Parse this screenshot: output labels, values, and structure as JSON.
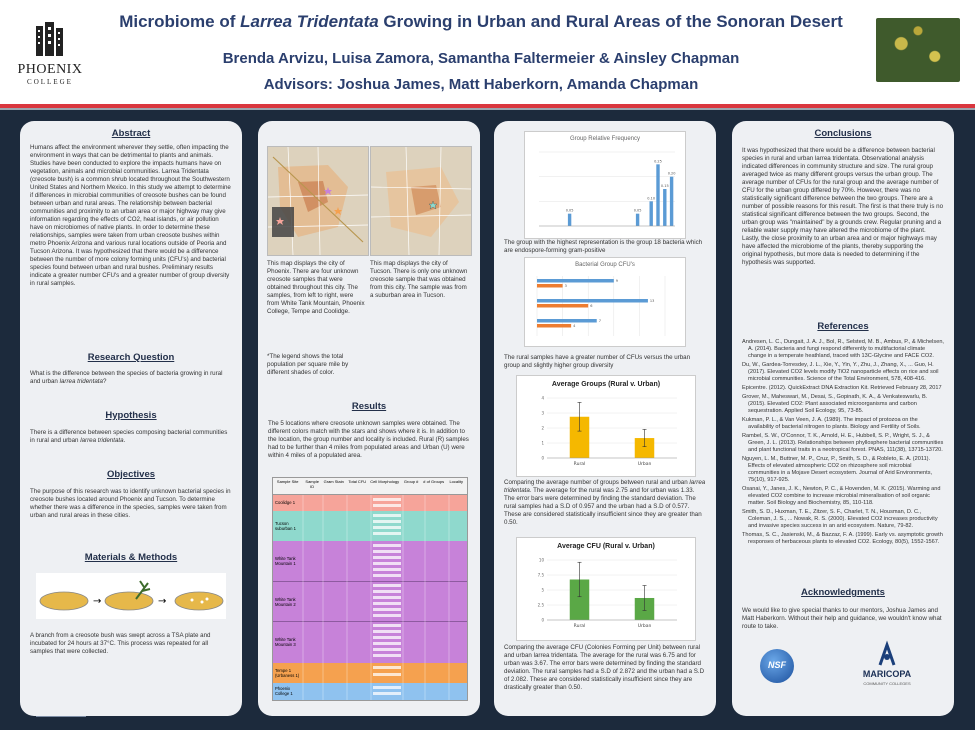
{
  "header": {
    "logo_text": "PHOENIX",
    "logo_sub": "COLLEGE",
    "title_pre": "Microbiome of ",
    "title_italic": "Larrea Tridentata",
    "title_post": " Growing in Urban and Rural Areas of the Sonoran Desert",
    "authors": "Brenda Arvizu, Luisa Zamora, Samantha Faltermeier & Ainsley Chapman",
    "advisors": "Advisors: Joshua James, Matt Haberkorn, Amanda Chapman"
  },
  "abstract": {
    "heading": "Abstract",
    "text": "Humans affect the environment wherever they settle, often impacting the environment in ways that can be detrimental to plants and animals. Studies have been conducted to explore the impacts humans have on vegetation, animals and microbial communities. Larrea Tridentata (creosote bush) is a common shrub located throughout the Southwestern United States and Northern Mexico. In this study we attempt to determine if differences in microbial communities of creosote bushes can be found between urban and rural areas. The relationship between bacterial communities and proximity to an urban area or major highway may give information regarding the effects of CO2, heat islands, or air pollution have on microbiomes of native plants. In order to determine these relationships, samples were taken from urban creosote bushes within metro Phoenix Arizona and various rural locations outside of Peoria and Tucson Arizona. It was hypothesized that there would be a difference between the number of more colony forming units (CFU's) and bacterial species found between urban and rural bushes. Preliminary results indicate a greater number CFU's and a greater number of group diversity in rural samples."
  },
  "research_question": {
    "heading": "Research Question",
    "text_pre": "What is the difference between the species of bacteria growing in rural and urban ",
    "text_italic": "larrea tridentata",
    "text_post": "?"
  },
  "hypothesis": {
    "heading": "Hypothesis",
    "text_pre": "There is a difference between species composing bacterial communities in rural and urban ",
    "text_italic": "larrea tridentata",
    "text_post": "."
  },
  "objectives": {
    "heading": "Objectives",
    "text": "The purpose of this research was to identify unknown bacterial species in creosote bushes located around Phoenix and Tucson. To determine whether there was a difference in the species, samples were taken from urban and rural areas in these cities."
  },
  "materials": {
    "heading": "Materials & Methods",
    "text": "A branch from a creosote bush was swept across a TSA plate and incubated for 24 hours at 37°C. This process was repeated for all samples that were collected."
  },
  "maps": {
    "phoenix_caption": "This map displays the city of Phoenix. There are four unknown creosote samples that were obtained throughout this city. The samples, from left to right, were from White Tank Mountain, Phoenix College, Tempe and Coolidge.",
    "tucson_caption": "This map displays the city of Tucson. There is only one unknown creosote sample that was obtained from this city. The sample was from a suburban area in Tucson.",
    "legend_note": "*The legend shows the total population per square mile by different shades of color."
  },
  "results": {
    "heading": "Results",
    "text": "The 5 locations where creosote unknown samples were obtained. The different colors match with the stars and shows where it is. In addition to the location, the group number and locality is included. Rural (R) samples had to be further than 4 miles from populated areas and Urban (U) were within 4 miles of a populated area.",
    "table_headers": [
      "Sample Site",
      "Sample ID",
      "Gram Stain",
      "Total CFU",
      "Cell Morphology",
      "Group #",
      "# of Groups",
      "Locality"
    ],
    "table_rows": [
      {
        "site": "Coolidge 1",
        "color": "#f6a49a"
      },
      {
        "site": "Tucson suburban 1",
        "color": "#8fd9cd"
      },
      {
        "site": "White Tank Mountain 1",
        "color": "#c782d9"
      },
      {
        "site": "White Tank Mountain 2",
        "color": "#c782d9"
      },
      {
        "site": "White Tank Mountain 3",
        "color": "#c782d9"
      },
      {
        "site": "Tempe 1 (Urbaness 1)",
        "color": "#f5a14f"
      },
      {
        "site": "Phoenix College 1",
        "color": "#8fc2ef"
      }
    ]
  },
  "chart_caption_1": "The group with the highest representation is the group 18 bacteria which are endospore-forming gram-positive",
  "chart_caption_2": "The rural samples have a greater number of CFUs versus the urban group and slightly higher group diversity",
  "chart_caption_3_pre": "Comparing the average number of groups between rural and urban ",
  "chart_caption_3_italic": "larrea tridentata",
  "chart_caption_3_post": ". The average for the rural was 2.75 and for urban was 1.33. The error bars were determined by finding the standard deviation. The rural samples had a S.D of 0.957 and the urban had a S.D of 0.577. These are considered statistically insufficient since they are greater than 0.50.",
  "chart_caption_4": "Comparing the average CFU (Colonies Forming per Unit) between rural and urban larrea tridentata. The average for the rural was 6.75 and for urban was 3.67. The error bars were determined by finding the standard deviation. The rural samples had a S.D of 2.872 and the urban had a S.D of 2.082. These are considered statistically insufficient since they are drastically greater than 0.50.",
  "chart_data": [
    {
      "type": "bar",
      "title": "Group Relative Frequency",
      "categories": [
        "1",
        "2",
        "3",
        "4",
        "5",
        "6",
        "7",
        "8",
        "9",
        "10",
        "11",
        "12",
        "13",
        "14",
        "15",
        "16",
        "17",
        "18",
        "19",
        "20"
      ],
      "values": [
        0,
        0,
        0,
        0,
        0.05,
        0,
        0,
        0,
        0,
        0,
        0,
        0,
        0,
        0,
        0.05,
        0,
        0.1,
        0.25,
        0.15,
        0.2
      ],
      "color": "#5b9bd5"
    },
    {
      "type": "bar",
      "title": "Bacterial Group CFU's",
      "orientation": "horizontal",
      "series": [
        {
          "name": "Rural",
          "values": [
            9,
            13,
            7
          ],
          "color": "#5b9bd5"
        },
        {
          "name": "Urban",
          "values": [
            3,
            6,
            4
          ],
          "color": "#ed7d31"
        }
      ]
    },
    {
      "type": "bar",
      "title": "Average Groups (Rural v. Urban)",
      "categories": [
        "Rural",
        "Urban"
      ],
      "values": [
        2.75,
        1.33
      ],
      "error": [
        0.957,
        0.577
      ],
      "color": "#f5b800",
      "ylim": [
        0,
        4
      ]
    },
    {
      "type": "bar",
      "title": "Average CFU (Rural v. Urban)",
      "categories": [
        "Rural",
        "Urban"
      ],
      "values": [
        6.75,
        3.67
      ],
      "error": [
        2.872,
        2.082
      ],
      "color": "#5aa846",
      "ylim": [
        0,
        10
      ]
    }
  ],
  "conclusions": {
    "heading": "Conclusions",
    "text": "It was hypothesized that there would be a difference between bacterial species in rural and urban larrea tridentata. Observational analysis indicated differences in community structure and size. The rural group averaged twice as many different groups versus the urban group. The average number of CFUs for the rural group and the average number of CFU for the urban group differed by 70%. However, there was no statistically significant difference between the two groups. There are a number of possible reasons for this result. The first is that there truly is no statistical significant difference between the two groups. Second, the urban group was \"maintained\" by a grounds crew. Regular pruning and a reliable water supply may have altered the microbiome of the plant. Lastly, the close proximity to an urban area and or major highways may have affected the microbiome of the plants, thereby supporting the original hypothesis, but more data is needed to determining if the hypothesis was supported."
  },
  "references": {
    "heading": "References",
    "items": [
      "Andresen, L. C., Dungait, J. A. J., Bol, R., Selsted, M. B., Ambus, P., & Michelsen, A. (2014). Bacteria and fungi respond differently to multifactorial climate change in a temperate heathland, traced with 13C-Glycine and FACE CO2.",
      "Du, W., Gardea-Torresdey, J. L., Xie, Y., Yin, Y., Zhu, J., Zhang, X., ... Guo, H. (2017). Elevated CO2 levels modify TiO2 nanoparticle effects on rice and soil microbial communities. Science of the Total Environment, 578, 408-416.",
      "Epicentre. (2012). QuickExtract DNA Extraction Kit. Retrieved February 28, 2017",
      "Grover, M., Maheswari, M., Desai, S., Gopinath, K. A., & Venkateswarlu, B. (2015). Elevated CO2: Plant associated microorganisms and carbon sequestration. Applied Soil Ecology, 95, 73-85.",
      "Kukman, P. L., & Van Veen, J. A. (1989). The impact of protozoa on the availability of bacterial nitrogen to plants. Biology and Fertility of Soils.",
      "Rambel, S. W., O'Connor, T. K., Arnold, H. E., Hubbell, S. P., Wright, S. J., & Green, J. L. (2013). Relationships between phyllosphere bacterial communities and plant functional traits in a neotropical forest. PNAS, 111(38), 13715-13720.",
      "Nguyen, L. M., Buttner, M. P., Cruz, P., Smith, S. D., & Robleto, E. A. (2011). Effects of elevated atmospheric CO2 on rhizosphere soil microbial communities in a Mojave Desert ecosystem. Journal of Arid Environments, 75(10), 917-925.",
      "Osanai, Y., Janes, J. K., Newton, P. C., & Hovenden, M. K. (2015). Warming and elevated CO2 combine to increase microbial mineralisation of soil organic matter. Soil Biology and Biochemistry, 85, 110-118.",
      "Smith, S. D., Huxman, T. E., Zitzer, S. F., Charlet, T. N., Housman, D. C., Coleman, J. S., ... Nowak, R. S. (2000). Elevated CO2 increases productivity and invasive species success in an arid ecosystem. Nature, 79-82.",
      "Thomas, S. C., Jasienski, M., & Bazzaz, F. A. (1999). Early vs. asymptotic growth responses of herbaceous plants to elevated CO2. Ecology, 80(5), 1552-1567."
    ]
  },
  "acknowledgments": {
    "heading": "Acknowledgments",
    "text": "We would like to give special thanks to our mentors, Joshua James and Matt Haberkorn. Without their help and guidance, we wouldn't know what route to take."
  },
  "logos": {
    "nsf": "NSF",
    "maricopa": "MARICOPA",
    "maricopa_sub": "COMMUNITY COLLEGES"
  }
}
